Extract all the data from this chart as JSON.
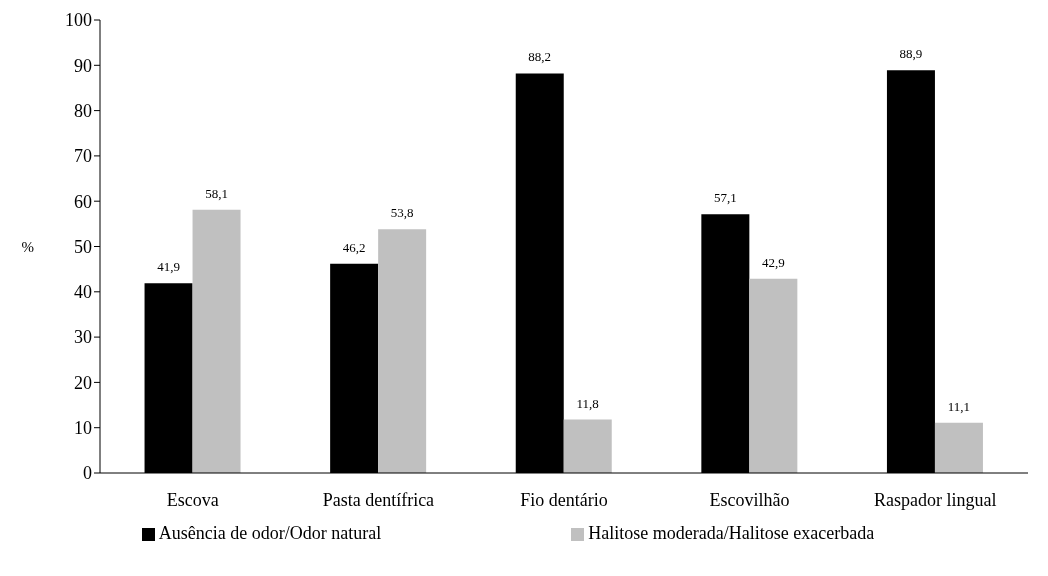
{
  "chart_data": {
    "type": "bar",
    "ylabel": "%",
    "categories": [
      "Escova",
      "Pasta dentífrica",
      "Fio dentário",
      "Escovilhão",
      "Raspador lingual"
    ],
    "series": [
      {
        "name": "Ausência de odor/Odor natural",
        "color": "#000000",
        "values": [
          41.9,
          46.2,
          88.2,
          57.1,
          88.9
        ],
        "value_labels": [
          "41,9",
          "46,2",
          "88,2",
          "57,1",
          "88,9"
        ]
      },
      {
        "name": "Halitose moderada/Halitose exacerbada",
        "color": "#c0c0c0",
        "values": [
          58.1,
          53.8,
          11.8,
          42.9,
          11.1
        ],
        "value_labels": [
          "58,1",
          "53,8",
          "11,8",
          "42,9",
          "11,1"
        ]
      }
    ],
    "ylim": [
      0,
      100
    ],
    "yticks": [
      0,
      10,
      20,
      30,
      40,
      50,
      60,
      70,
      80,
      90,
      100
    ],
    "grid": false,
    "legend": "bottom"
  }
}
